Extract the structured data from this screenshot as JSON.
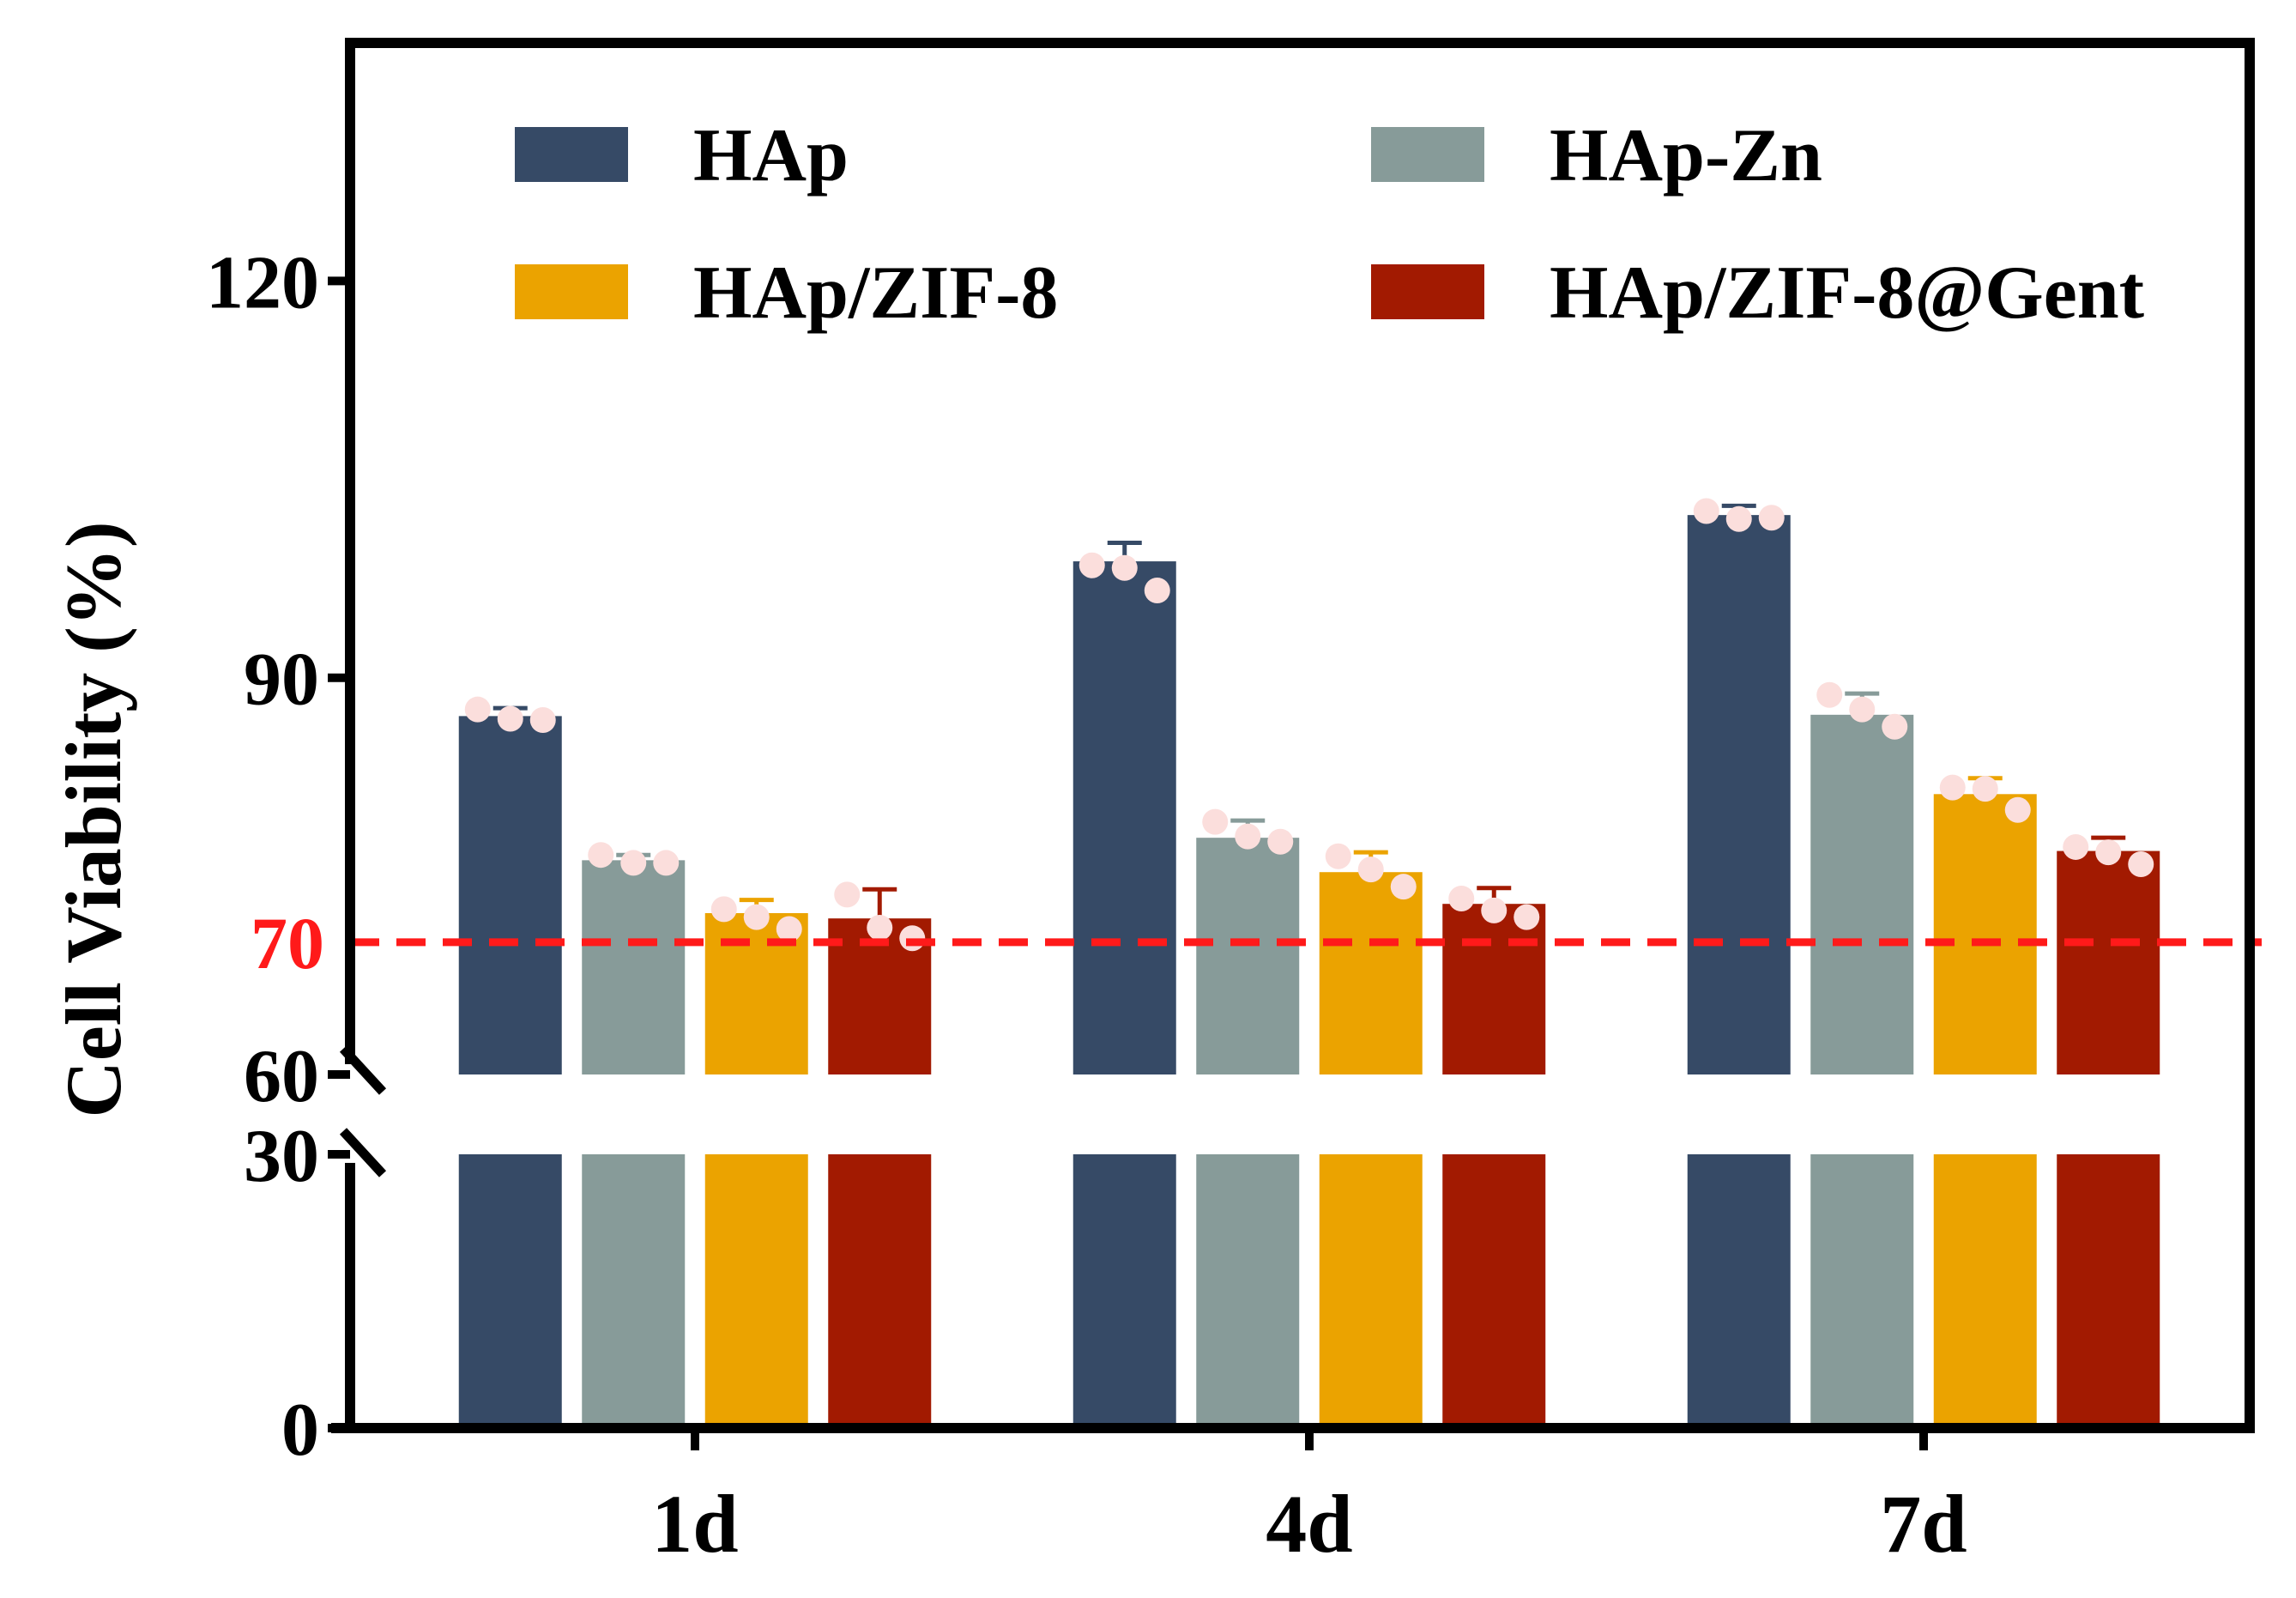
{
  "chart_data": {
    "type": "bar",
    "title": "",
    "xlabel": "",
    "ylabel": "Cell Viability (%)",
    "categories": [
      "1d",
      "4d",
      "7d"
    ],
    "y_ticks": [
      "0",
      "30",
      "60",
      "90",
      "120"
    ],
    "threshold": {
      "value": 70,
      "label": "70",
      "color": "#ff1a1a"
    },
    "axis_break": {
      "lower": 30,
      "upper": 60
    },
    "ylim": [
      0,
      138
    ],
    "legend_position": "top",
    "series": [
      {
        "name": "HAp",
        "color": "#364a66",
        "values": [
          87.1,
          98.8,
          102.3
        ],
        "errors": [
          0.6,
          1.4,
          0.7
        ],
        "points": [
          [
            87.6,
            86.9,
            86.8
          ],
          [
            98.5,
            98.3,
            96.6
          ],
          [
            102.6,
            102.0,
            102.1
          ]
        ]
      },
      {
        "name": "HAp-Zn",
        "color": "#879b99",
        "values": [
          76.2,
          77.9,
          87.2
        ],
        "errors": [
          0.4,
          1.3,
          1.6
        ],
        "points": [
          [
            76.6,
            76.0,
            76.0
          ],
          [
            79.1,
            78.0,
            77.6
          ],
          [
            88.7,
            87.6,
            86.3
          ]
        ]
      },
      {
        "name": "HAp/ZIF-8",
        "color": "#eba300",
        "values": [
          72.2,
          75.3,
          81.2
        ],
        "errors": [
          1.0,
          1.5,
          1.2
        ],
        "points": [
          [
            72.5,
            71.9,
            71.0
          ],
          [
            76.5,
            75.5,
            74.2
          ],
          [
            81.7,
            81.6,
            80.0
          ]
        ]
      },
      {
        "name": "HAp/ZIF-8@Gent",
        "color": "#a21a01",
        "values": [
          71.8,
          72.9,
          76.9
        ],
        "errors": [
          2.2,
          1.2,
          1.0
        ],
        "points": [
          [
            73.6,
            71.1,
            70.3
          ],
          [
            73.3,
            72.4,
            71.9
          ],
          [
            77.2,
            76.8,
            75.9
          ]
        ]
      }
    ]
  }
}
